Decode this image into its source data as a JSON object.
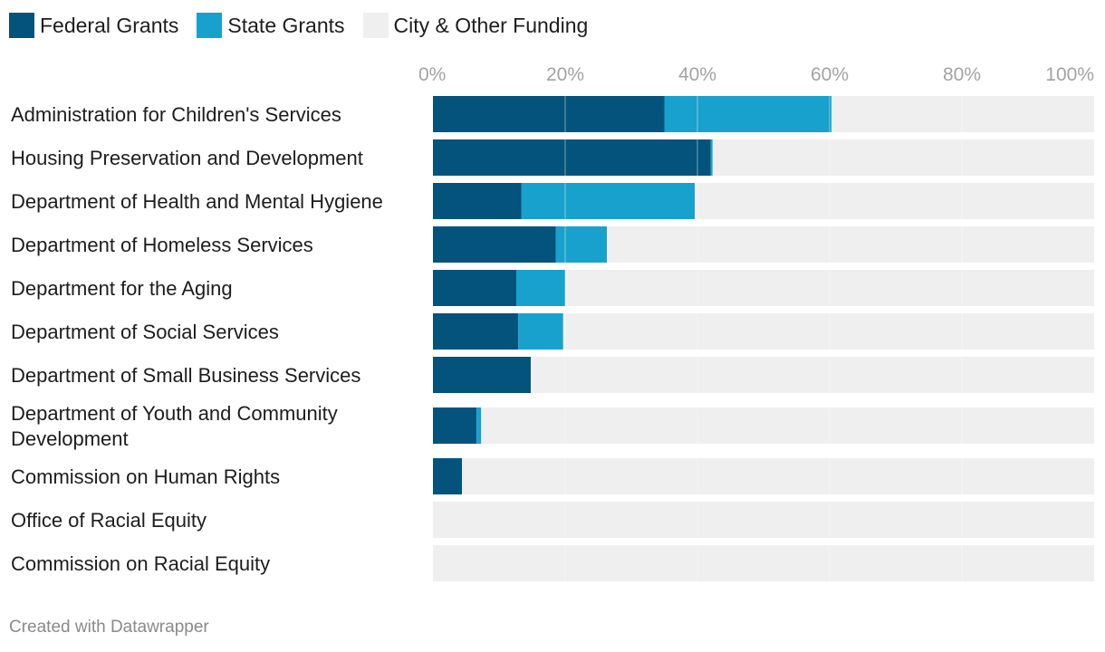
{
  "chart_data": {
    "type": "bar",
    "orientation": "horizontal",
    "stacked": true,
    "title": "",
    "xlabel": "",
    "ylabel": "",
    "xlim": [
      0,
      100
    ],
    "ticks": [
      0,
      20,
      40,
      60,
      80,
      100
    ],
    "tick_labels": [
      "0%",
      "20%",
      "40%",
      "60%",
      "80%",
      "100%"
    ],
    "grid": true,
    "legend_position": "top-left",
    "categories": [
      "Administration for Children's Services",
      "Housing Preservation and Development",
      "Department of Health and Mental Hygiene",
      "Department of Homeless Services",
      "Department for the Aging",
      "Department of Social Services",
      "Department of Small Business Services",
      "Department of Youth and Community Development",
      "Commission on Human Rights",
      "Office of Racial Equity",
      "Commission on Racial Equity"
    ],
    "category_lines": [
      [
        "Administration for Children's Services"
      ],
      [
        "Housing Preservation and Development"
      ],
      [
        "Department of Health and Mental Hygiene"
      ],
      [
        "Department of Homeless Services"
      ],
      [
        "Department for the Aging"
      ],
      [
        "Department of Social Services"
      ],
      [
        "Department of Small Business Services"
      ],
      [
        "Department of Youth and Community",
        "Development"
      ],
      [
        "Commission on Human Rights"
      ],
      [
        "Office of Racial Equity"
      ],
      [
        "Commission on Racial Equity"
      ]
    ],
    "series": [
      {
        "name": "Federal Grants",
        "color": "#03537d",
        "values": [
          35.0,
          42.0,
          13.4,
          18.6,
          12.6,
          12.9,
          14.8,
          6.6,
          4.4,
          0,
          0
        ]
      },
      {
        "name": "State Grants",
        "color": "#18a1cd",
        "values": [
          25.3,
          0.3,
          26.2,
          7.7,
          7.4,
          6.8,
          0,
          0.7,
          0,
          0,
          0
        ]
      },
      {
        "name": "City & Other Funding",
        "color": "#efefef",
        "values": [
          39.7,
          57.7,
          60.4,
          73.7,
          80.0,
          80.3,
          85.2,
          92.7,
          95.6,
          100,
          100
        ]
      }
    ]
  },
  "credit": "Created with Datawrapper"
}
